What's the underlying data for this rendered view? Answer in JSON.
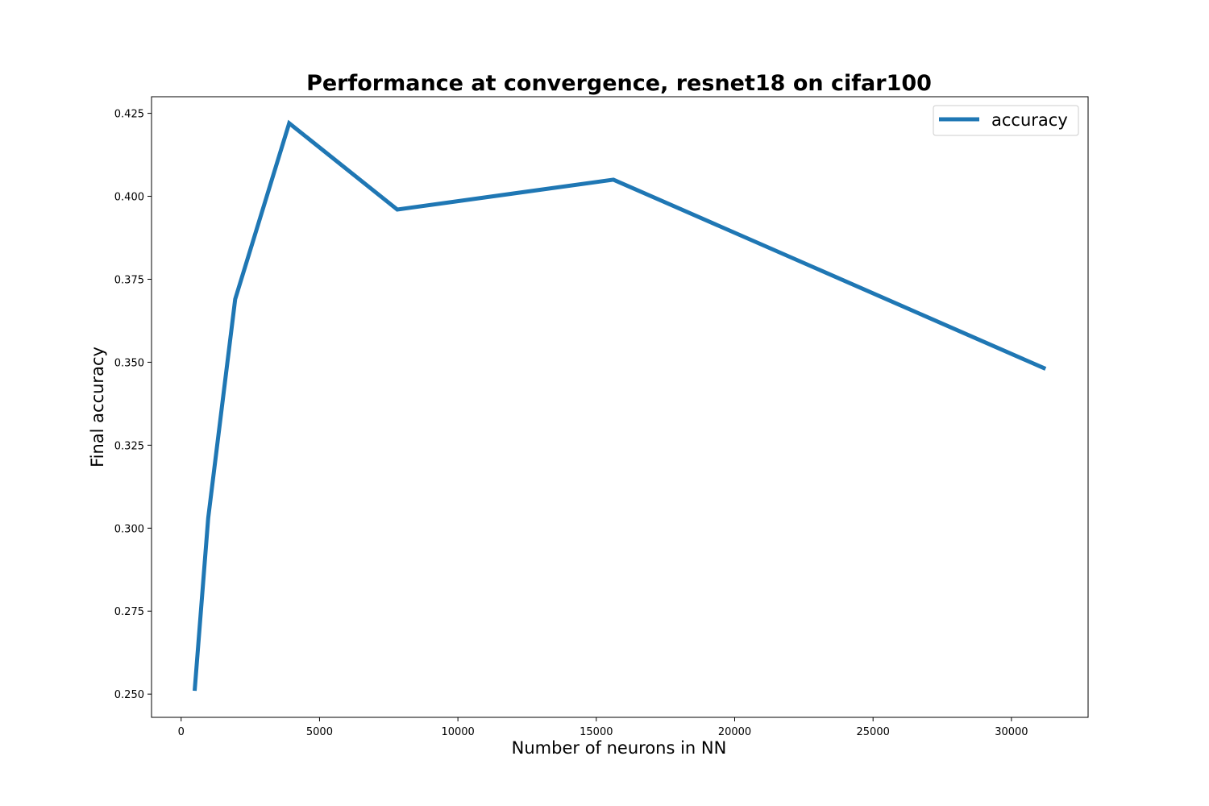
{
  "chart_data": {
    "type": "line",
    "title": "Performance at convergence, resnet18 on cifar100",
    "xlabel": "Number of neurons in NN",
    "ylabel": "Final accuracy",
    "xlim": [
      -1070,
      32770
    ],
    "ylim": [
      0.243,
      0.43
    ],
    "xticks": [
      0,
      5000,
      10000,
      15000,
      20000,
      25000,
      30000
    ],
    "xtick_labels": [
      "0",
      "5000",
      "10000",
      "15000",
      "20000",
      "25000",
      "30000"
    ],
    "yticks": [
      0.25,
      0.275,
      0.3,
      0.325,
      0.35,
      0.375,
      0.4,
      0.425
    ],
    "ytick_labels": [
      "0.250",
      "0.275",
      "0.300",
      "0.325",
      "0.350",
      "0.375",
      "0.400",
      "0.425"
    ],
    "grid": false,
    "legend_position": "top-right",
    "series": [
      {
        "name": "accuracy",
        "color": "#1f77b4",
        "x": [
          488,
          976,
          1952,
          3904,
          7808,
          15616,
          31232
        ],
        "y": [
          0.251,
          0.303,
          0.369,
          0.422,
          0.396,
          0.405,
          0.348
        ]
      }
    ]
  }
}
